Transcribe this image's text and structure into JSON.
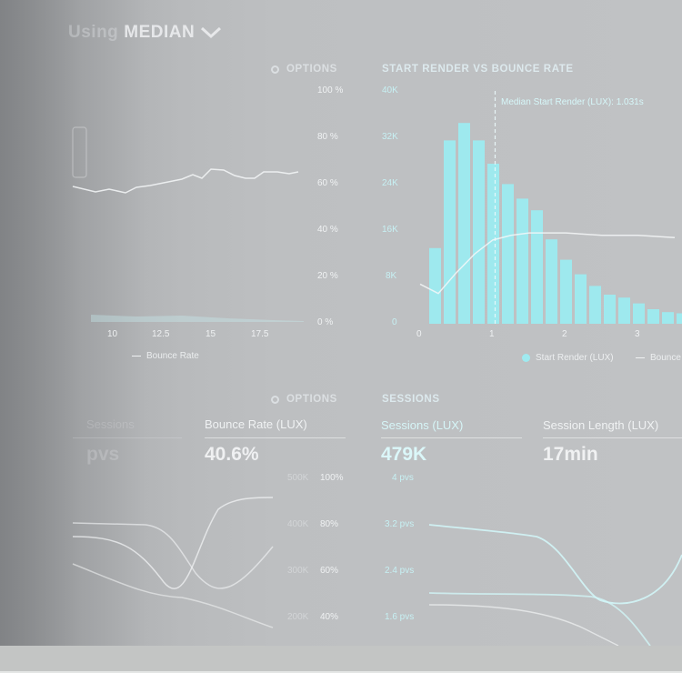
{
  "header": {
    "prefix": "Using",
    "title": "MEDIAN"
  },
  "options_label": "OPTIONS",
  "left_chart": {
    "y_ticks": [
      "100 %",
      "80 %",
      "60 %",
      "40 %",
      "20 %",
      "0 %"
    ],
    "x_ticks": [
      "10",
      "12.5",
      "15",
      "17.5"
    ],
    "legend_bounce": "Bounce Rate"
  },
  "render_chart": {
    "title": "START RENDER VS BOUNCE RATE",
    "annotation": "Median Start Render (LUX): 1.031s",
    "legend_start_render": "Start Render (LUX)",
    "legend_bounce": "Bounce",
    "chart_data": {
      "type": "bar",
      "x_ticks": [
        "0",
        "1",
        "2",
        "3"
      ],
      "y_ticks": [
        "40K",
        "32K",
        "24K",
        "16K",
        "8K",
        "0"
      ],
      "ylim": [
        0,
        40000
      ],
      "xlim": [
        0,
        3.55
      ],
      "bin_starts": [
        0.1,
        0.3,
        0.5,
        0.7,
        0.9,
        1.1,
        1.3,
        1.5,
        1.7,
        1.9,
        2.1,
        2.3,
        2.5,
        2.7,
        2.9,
        3.1,
        3.3,
        3.5
      ],
      "values": [
        13000,
        31500,
        34500,
        31500,
        27500,
        24000,
        21500,
        19500,
        14500,
        11000,
        8500,
        6500,
        5000,
        4500,
        3500,
        2500,
        2000,
        1800
      ],
      "bounce_series": [
        [
          0,
          17
        ],
        [
          0.25,
          13
        ],
        [
          0.5,
          22
        ],
        [
          0.75,
          30
        ],
        [
          1.0,
          36
        ],
        [
          1.25,
          38
        ],
        [
          1.5,
          39
        ],
        [
          2.0,
          39
        ],
        [
          2.5,
          38
        ],
        [
          3.0,
          38
        ],
        [
          3.5,
          37
        ]
      ],
      "median_start_render": 1.031
    }
  },
  "metrics": {
    "ghost_label": "Sessions",
    "ghost_value": "pvs",
    "bounce_label": "Bounce Rate (LUX)",
    "bounce_value": "40.6%",
    "sessions_title": "SESSIONS",
    "sessions_label": "Sessions (LUX)",
    "sessions_value": "479K",
    "length_label": "Session Length (LUX)",
    "length_value": "17min"
  },
  "bottom_left": {
    "y_ticks_k": [
      "500K",
      "400K",
      "300K",
      "200K"
    ],
    "y_ticks_pct": [
      "100%",
      "80%",
      "60%",
      "40%"
    ]
  },
  "bottom_right": {
    "y_ticks": [
      "4 pvs",
      "3.2 pvs",
      "2.4 pvs",
      "1.6 pvs"
    ]
  }
}
